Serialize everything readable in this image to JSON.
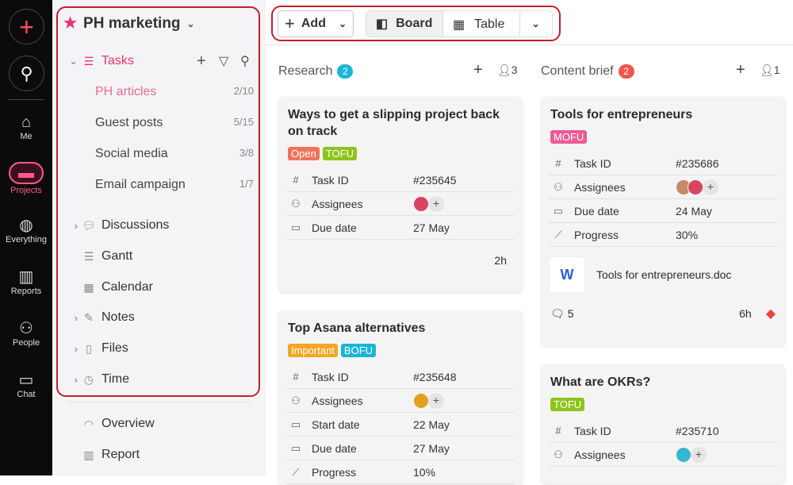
{
  "rail": {
    "items": [
      {
        "label": "Me",
        "icon": "home-icon"
      },
      {
        "label": "Projects",
        "icon": "folder-icon"
      },
      {
        "label": "Everything",
        "icon": "globe-icon"
      },
      {
        "label": "Reports",
        "icon": "bar-chart-icon"
      },
      {
        "label": "People",
        "icon": "people-icon"
      },
      {
        "label": "Chat",
        "icon": "chat-icon"
      }
    ]
  },
  "sidebar": {
    "project": "PH marketing",
    "tasks_label": "Tasks",
    "lists": [
      {
        "label": "PH articles",
        "count": "2/10"
      },
      {
        "label": "Guest posts",
        "count": "5/15"
      },
      {
        "label": "Social media",
        "count": "3/8"
      },
      {
        "label": "Email campaign",
        "count": "1/7"
      }
    ],
    "sections": [
      "Discussions",
      "Gantt",
      "Calendar",
      "Notes",
      "Files",
      "Time"
    ],
    "extra": [
      "Overview",
      "Report"
    ]
  },
  "toolbar": {
    "add": "Add",
    "board": "Board",
    "table": "Table"
  },
  "colors": {
    "accent": "#e8336d",
    "red_highlight": "#c0202e"
  },
  "columns": [
    {
      "title": "Research",
      "count": "2",
      "members": "3",
      "badge_color": "#1bb5d6",
      "cards": [
        {
          "title": "Ways to get a slipping project back on track",
          "tags": [
            {
              "t": "Open",
              "c": "#f0735a"
            },
            {
              "t": "TOFU",
              "c": "#8cc51a"
            }
          ],
          "fields": [
            {
              "l": "Task ID",
              "v": "#235645"
            },
            {
              "l": "Assignees",
              "v": ""
            },
            {
              "l": "Due date",
              "v": "27 May"
            }
          ],
          "time": "2h"
        },
        {
          "title": "Top Asana alternatives",
          "tags": [
            {
              "t": "Important",
              "c": "#f5a623"
            },
            {
              "t": "BOFU",
              "c": "#1bb5d6"
            }
          ],
          "fields": [
            {
              "l": "Task ID",
              "v": "#235648"
            },
            {
              "l": "Assignees",
              "v": ""
            },
            {
              "l": "Start date",
              "v": "22 May"
            },
            {
              "l": "Due date",
              "v": "27 May"
            },
            {
              "l": "Progress",
              "v": "10%"
            }
          ]
        }
      ]
    },
    {
      "title": "Content brief",
      "count": "2",
      "members": "1",
      "badge_color": "#f0574f",
      "cards": [
        {
          "title": "Tools for entrepreneurs",
          "tags": [
            {
              "t": "MOFU",
              "c": "#ec5b94"
            }
          ],
          "fields": [
            {
              "l": "Task ID",
              "v": "#235686"
            },
            {
              "l": "Assignees",
              "v": ""
            },
            {
              "l": "Due date",
              "v": "24 May"
            },
            {
              "l": "Progress",
              "v": "30%"
            }
          ],
          "file": "Tools for entrepreneurs.doc",
          "comments": "5",
          "time": "6h"
        },
        {
          "title": "What are OKRs?",
          "tags": [
            {
              "t": "TOFU",
              "c": "#8cc51a"
            }
          ],
          "fields": [
            {
              "l": "Task ID",
              "v": "#235710"
            },
            {
              "l": "Assignees",
              "v": ""
            }
          ]
        }
      ]
    }
  ]
}
